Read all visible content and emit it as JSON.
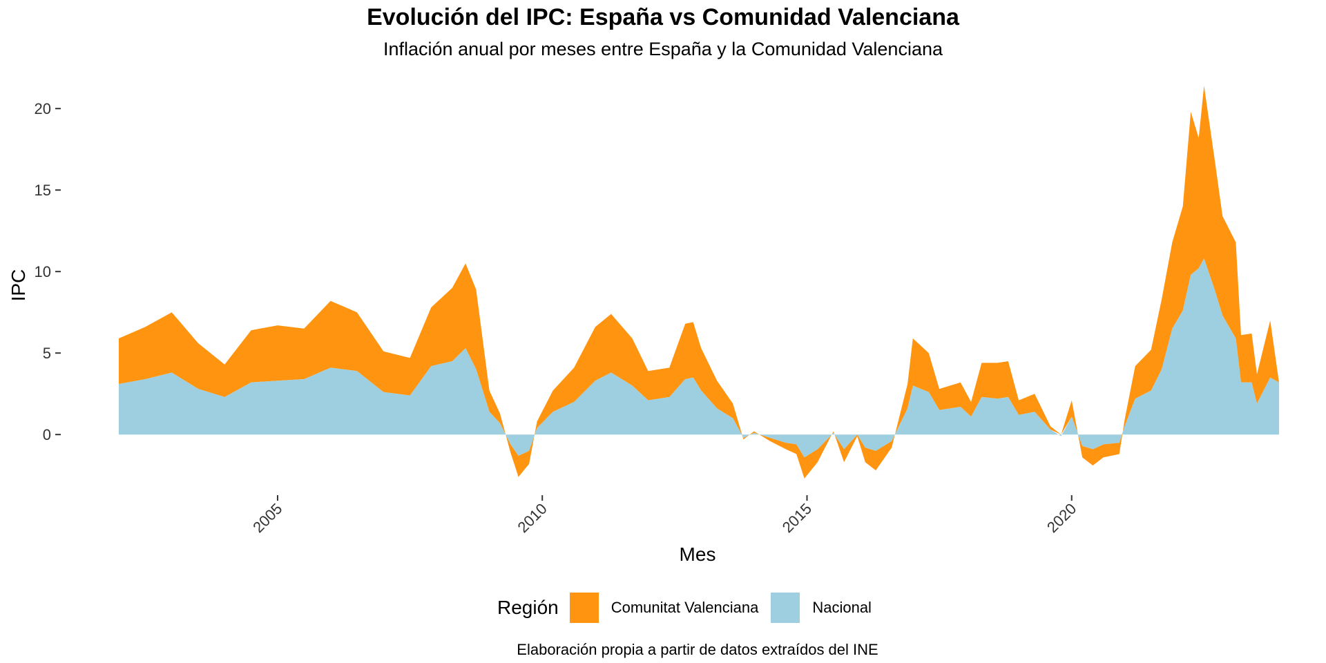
{
  "title": "Evolución del IPC: España vs Comunidad Valenciana",
  "subtitle": "Inflación anual por meses entre España y la Comunidad Valenciana",
  "caption": "Elaboración propia a partir de datos extraídos del INE",
  "legend": {
    "title": "Región",
    "items": [
      {
        "label": "Comunitat Valenciana",
        "color": "#FF9410"
      },
      {
        "label": "Nacional",
        "color": "#9ECFE0"
      }
    ]
  },
  "chart_data": {
    "type": "area",
    "stacked": true,
    "xlabel": "Mes",
    "ylabel": "IPC",
    "xlim": [
      2002.0,
      2023.917
    ],
    "ylim": [
      -3,
      22
    ],
    "x_ticks": [
      2005,
      2010,
      2015,
      2020
    ],
    "x_tick_labels": [
      "2005",
      "2010",
      "2015",
      "2020"
    ],
    "y_ticks": [
      0,
      5,
      10,
      15,
      20
    ],
    "y_tick_labels": [
      "0",
      "5",
      "10",
      "15",
      "20"
    ],
    "grid": false,
    "legend_position": "bottom",
    "series": [
      {
        "name": "Nacional",
        "color": "#9ECFE0",
        "points": [
          [
            2002.0,
            3.1
          ],
          [
            2002.5,
            3.4
          ],
          [
            2003.0,
            3.8
          ],
          [
            2003.5,
            2.8
          ],
          [
            2004.0,
            2.3
          ],
          [
            2004.5,
            3.2
          ],
          [
            2005.0,
            3.3
          ],
          [
            2005.5,
            3.4
          ],
          [
            2006.0,
            4.1
          ],
          [
            2006.5,
            3.9
          ],
          [
            2007.0,
            2.6
          ],
          [
            2007.5,
            2.4
          ],
          [
            2007.9,
            4.2
          ],
          [
            2008.3,
            4.5
          ],
          [
            2008.55,
            5.3
          ],
          [
            2008.75,
            4.0
          ],
          [
            2009.0,
            1.4
          ],
          [
            2009.2,
            0.7
          ],
          [
            2009.4,
            -0.6
          ],
          [
            2009.55,
            -1.3
          ],
          [
            2009.75,
            -1.0
          ],
          [
            2009.9,
            0.4
          ],
          [
            2010.2,
            1.4
          ],
          [
            2010.6,
            2.0
          ],
          [
            2011.0,
            3.3
          ],
          [
            2011.3,
            3.8
          ],
          [
            2011.7,
            3.0
          ],
          [
            2012.0,
            2.1
          ],
          [
            2012.4,
            2.3
          ],
          [
            2012.7,
            3.4
          ],
          [
            2012.85,
            3.5
          ],
          [
            2013.0,
            2.7
          ],
          [
            2013.3,
            1.6
          ],
          [
            2013.6,
            1.0
          ],
          [
            2013.8,
            -0.2
          ],
          [
            2014.0,
            0.1
          ],
          [
            2014.3,
            -0.2
          ],
          [
            2014.6,
            -0.5
          ],
          [
            2014.8,
            -0.6
          ],
          [
            2014.95,
            -1.4
          ],
          [
            2015.2,
            -0.9
          ],
          [
            2015.5,
            0.1
          ],
          [
            2015.7,
            -0.9
          ],
          [
            2015.95,
            0.0
          ],
          [
            2016.1,
            -0.8
          ],
          [
            2016.3,
            -1.0
          ],
          [
            2016.6,
            -0.4
          ],
          [
            2016.9,
            1.6
          ],
          [
            2017.0,
            3.0
          ],
          [
            2017.3,
            2.6
          ],
          [
            2017.5,
            1.5
          ],
          [
            2017.9,
            1.7
          ],
          [
            2018.1,
            1.1
          ],
          [
            2018.3,
            2.3
          ],
          [
            2018.6,
            2.2
          ],
          [
            2018.8,
            2.3
          ],
          [
            2019.0,
            1.2
          ],
          [
            2019.3,
            1.4
          ],
          [
            2019.6,
            0.3
          ],
          [
            2019.8,
            -0.1
          ],
          [
            2020.0,
            1.1
          ],
          [
            2020.2,
            -0.7
          ],
          [
            2020.4,
            -0.9
          ],
          [
            2020.6,
            -0.6
          ],
          [
            2020.9,
            -0.5
          ],
          [
            2021.0,
            0.5
          ],
          [
            2021.2,
            2.2
          ],
          [
            2021.5,
            2.7
          ],
          [
            2021.7,
            4.0
          ],
          [
            2021.9,
            6.5
          ],
          [
            2022.1,
            7.6
          ],
          [
            2022.25,
            9.8
          ],
          [
            2022.4,
            10.2
          ],
          [
            2022.5,
            10.8
          ],
          [
            2022.7,
            8.9
          ],
          [
            2022.85,
            7.3
          ],
          [
            2023.1,
            5.9
          ],
          [
            2023.2,
            3.2
          ],
          [
            2023.4,
            3.2
          ],
          [
            2023.5,
            1.9
          ],
          [
            2023.75,
            3.5
          ],
          [
            2023.917,
            3.2
          ]
        ]
      },
      {
        "name": "Comunitat Valenciana",
        "color": "#FF9410",
        "points": [
          [
            2002.0,
            2.8
          ],
          [
            2002.5,
            3.2
          ],
          [
            2003.0,
            3.7
          ],
          [
            2003.5,
            2.8
          ],
          [
            2004.0,
            2.0
          ],
          [
            2004.5,
            3.2
          ],
          [
            2005.0,
            3.4
          ],
          [
            2005.5,
            3.1
          ],
          [
            2006.0,
            4.1
          ],
          [
            2006.5,
            3.6
          ],
          [
            2007.0,
            2.5
          ],
          [
            2007.5,
            2.3
          ],
          [
            2007.9,
            3.6
          ],
          [
            2008.3,
            4.5
          ],
          [
            2008.55,
            5.2
          ],
          [
            2008.75,
            4.9
          ],
          [
            2009.0,
            1.3
          ],
          [
            2009.2,
            0.6
          ],
          [
            2009.4,
            -0.5
          ],
          [
            2009.55,
            -1.3
          ],
          [
            2009.75,
            -0.8
          ],
          [
            2009.9,
            0.4
          ],
          [
            2010.2,
            1.3
          ],
          [
            2010.6,
            2.1
          ],
          [
            2011.0,
            3.3
          ],
          [
            2011.3,
            3.6
          ],
          [
            2011.7,
            2.9
          ],
          [
            2012.0,
            1.8
          ],
          [
            2012.4,
            1.8
          ],
          [
            2012.7,
            3.4
          ],
          [
            2012.85,
            3.4
          ],
          [
            2013.0,
            2.6
          ],
          [
            2013.3,
            1.7
          ],
          [
            2013.6,
            0.9
          ],
          [
            2013.8,
            -0.1
          ],
          [
            2014.0,
            0.1
          ],
          [
            2014.3,
            -0.2
          ],
          [
            2014.6,
            -0.4
          ],
          [
            2014.8,
            -0.6
          ],
          [
            2014.95,
            -1.3
          ],
          [
            2015.2,
            -0.8
          ],
          [
            2015.5,
            0.1
          ],
          [
            2015.7,
            -0.8
          ],
          [
            2015.95,
            -0.1
          ],
          [
            2016.1,
            -0.9
          ],
          [
            2016.3,
            -1.2
          ],
          [
            2016.6,
            -0.4
          ],
          [
            2016.9,
            1.5
          ],
          [
            2017.0,
            2.9
          ],
          [
            2017.3,
            2.4
          ],
          [
            2017.5,
            1.3
          ],
          [
            2017.9,
            1.5
          ],
          [
            2018.1,
            0.9
          ],
          [
            2018.3,
            2.1
          ],
          [
            2018.6,
            2.2
          ],
          [
            2018.8,
            2.2
          ],
          [
            2019.0,
            0.9
          ],
          [
            2019.3,
            1.1
          ],
          [
            2019.6,
            0.2
          ],
          [
            2019.8,
            0.0
          ],
          [
            2020.0,
            1.0
          ],
          [
            2020.2,
            -0.7
          ],
          [
            2020.4,
            -1.0
          ],
          [
            2020.6,
            -0.8
          ],
          [
            2020.9,
            -0.7
          ],
          [
            2021.0,
            0.4
          ],
          [
            2021.2,
            2.0
          ],
          [
            2021.5,
            2.5
          ],
          [
            2021.7,
            4.3
          ],
          [
            2021.9,
            5.3
          ],
          [
            2022.1,
            6.4
          ],
          [
            2022.25,
            10.0
          ],
          [
            2022.4,
            8.0
          ],
          [
            2022.5,
            10.6
          ],
          [
            2022.7,
            8.0
          ],
          [
            2022.85,
            6.1
          ],
          [
            2023.1,
            5.9
          ],
          [
            2023.2,
            2.9
          ],
          [
            2023.4,
            3.0
          ],
          [
            2023.5,
            1.8
          ],
          [
            2023.75,
            3.5
          ],
          [
            2023.917,
            0.0
          ]
        ]
      }
    ]
  }
}
